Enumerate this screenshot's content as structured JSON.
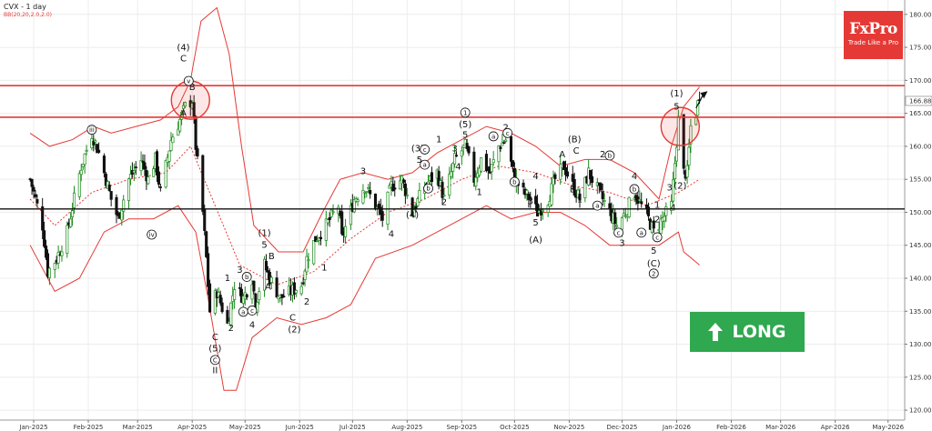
{
  "header": {
    "symbol": "CVX - 1 day",
    "indicator": "BB(20,20,2.0,2.0)"
  },
  "logo": {
    "brand": "FxPro",
    "tagline": "Trade Like a Pro"
  },
  "badge": {
    "label": "LONG",
    "icon": "arrow-up-icon"
  },
  "colors": {
    "price_up": "#1b8a1b",
    "price_down": "#111111",
    "band": "#e53935",
    "badge": "#2fa84f",
    "logo": "#e53935"
  },
  "chart_data": {
    "type": "candlestick",
    "ylim": [
      118,
      182
    ],
    "y_ticks": [
      120,
      125,
      130,
      135,
      140,
      145,
      150,
      155,
      160,
      165,
      170,
      175,
      180
    ],
    "x_ticks": [
      "Jan-2025",
      "Feb-2025",
      "Mar-2025",
      "Apr-2025",
      "May-2025",
      "Jun-2025",
      "Jul-2025",
      "Aug-2025",
      "Sep-2025",
      "Oct-2025",
      "Nov-2025",
      "Dec-2025",
      "Jan-2026",
      "Feb-2026",
      "Mar-2026",
      "Apr-2026",
      "May-2026"
    ],
    "last_price": "166.88",
    "price_path": [
      [
        "2024-12-30",
        155
      ],
      [
        "2025-01-06",
        148
      ],
      [
        "2025-01-09",
        141
      ],
      [
        "2025-01-14",
        143
      ],
      [
        "2025-01-20",
        147
      ],
      [
        "2025-01-28",
        157
      ],
      [
        "2025-02-03",
        162
      ],
      [
        "2025-02-07",
        159
      ],
      [
        "2025-02-14",
        152
      ],
      [
        "2025-02-18",
        149
      ],
      [
        "2025-02-24",
        155
      ],
      [
        "2025-03-03",
        158
      ],
      [
        "2025-03-07",
        155
      ],
      [
        "2025-03-11",
        158
      ],
      [
        "2025-03-14",
        153
      ],
      [
        "2025-03-20",
        161
      ],
      [
        "2025-03-25",
        164
      ],
      [
        "2025-03-28",
        166
      ],
      [
        "2025-04-01",
        167
      ],
      [
        "2025-04-03",
        160
      ],
      [
        "2025-04-07",
        150
      ],
      [
        "2025-04-09",
        143
      ],
      [
        "2025-04-11",
        135
      ],
      [
        "2025-04-15",
        138
      ],
      [
        "2025-04-21",
        133
      ],
      [
        "2025-04-25",
        139
      ],
      [
        "2025-04-30",
        137
      ],
      [
        "2025-05-05",
        140
      ],
      [
        "2025-05-07",
        136
      ],
      [
        "2025-05-12",
        142
      ],
      [
        "2025-05-15",
        140
      ],
      [
        "2025-05-21",
        137
      ],
      [
        "2025-05-27",
        138
      ],
      [
        "2025-06-02",
        139
      ],
      [
        "2025-06-05",
        143
      ],
      [
        "2025-06-10",
        146
      ],
      [
        "2025-06-16",
        148
      ],
      [
        "2025-06-23",
        151
      ],
      [
        "2025-06-25",
        146
      ],
      [
        "2025-07-02",
        152
      ],
      [
        "2025-07-08",
        154
      ],
      [
        "2025-07-14",
        151
      ],
      [
        "2025-07-18",
        149
      ],
      [
        "2025-07-23",
        154
      ],
      [
        "2025-07-29",
        155
      ],
      [
        "2025-08-04",
        150
      ],
      [
        "2025-08-11",
        154
      ],
      [
        "2025-08-18",
        156
      ],
      [
        "2025-08-22",
        152
      ],
      [
        "2025-08-28",
        158
      ],
      [
        "2025-09-03",
        160
      ],
      [
        "2025-09-08",
        155
      ],
      [
        "2025-09-12",
        158
      ],
      [
        "2025-09-17",
        156
      ],
      [
        "2025-09-22",
        160
      ],
      [
        "2025-09-26",
        161
      ],
      [
        "2025-10-01",
        155
      ],
      [
        "2025-10-06",
        153
      ],
      [
        "2025-10-10",
        152
      ],
      [
        "2025-10-14",
        150
      ],
      [
        "2025-10-20",
        152
      ],
      [
        "2025-10-24",
        155
      ],
      [
        "2025-10-29",
        157
      ],
      [
        "2025-11-03",
        154
      ],
      [
        "2025-11-07",
        152
      ],
      [
        "2025-11-12",
        156
      ],
      [
        "2025-11-18",
        153
      ],
      [
        "2025-11-24",
        150
      ],
      [
        "2025-11-28",
        148
      ],
      [
        "2025-12-03",
        150
      ],
      [
        "2025-12-08",
        153
      ],
      [
        "2025-12-12",
        151
      ],
      [
        "2025-12-16",
        149
      ],
      [
        "2025-12-19",
        147
      ],
      [
        "2025-12-24",
        149
      ],
      [
        "2025-12-29",
        151
      ],
      [
        "2026-01-02",
        164
      ],
      [
        "2026-01-05",
        156
      ],
      [
        "2026-01-07",
        156
      ],
      [
        "2026-01-09",
        163
      ],
      [
        "2026-01-12",
        165
      ],
      [
        "2026-01-14",
        168
      ]
    ],
    "bb_upper": [
      [
        "2024-12-30",
        162
      ],
      [
        "2025-01-10",
        160
      ],
      [
        "2025-01-23",
        161
      ],
      [
        "2025-02-04",
        163
      ],
      [
        "2025-02-14",
        162
      ],
      [
        "2025-02-28",
        163
      ],
      [
        "2025-03-14",
        164
      ],
      [
        "2025-03-24",
        166
      ],
      [
        "2025-03-31",
        170
      ],
      [
        "2025-04-06",
        179
      ],
      [
        "2025-04-15",
        181
      ],
      [
        "2025-04-22",
        174
      ],
      [
        "2025-04-29",
        160
      ],
      [
        "2025-05-06",
        148
      ],
      [
        "2025-05-20",
        144
      ],
      [
        "2025-06-03",
        144
      ],
      [
        "2025-06-14",
        150
      ],
      [
        "2025-06-24",
        155
      ],
      [
        "2025-07-07",
        156
      ],
      [
        "2025-07-21",
        155
      ],
      [
        "2025-08-04",
        156
      ],
      [
        "2025-08-18",
        159
      ],
      [
        "2025-09-01",
        161
      ],
      [
        "2025-09-15",
        163
      ],
      [
        "2025-09-29",
        162
      ],
      [
        "2025-10-13",
        160
      ],
      [
        "2025-10-27",
        157
      ],
      [
        "2025-11-10",
        158
      ],
      [
        "2025-11-24",
        158
      ],
      [
        "2025-12-08",
        156
      ],
      [
        "2025-12-22",
        152
      ],
      [
        "2025-12-29",
        160
      ],
      [
        "2026-01-05",
        166
      ],
      [
        "2026-01-14",
        169
      ]
    ],
    "bb_middle": [
      [
        "2024-12-30",
        152
      ],
      [
        "2025-01-13",
        148
      ],
      [
        "2025-02-03",
        153
      ],
      [
        "2025-02-24",
        155
      ],
      [
        "2025-03-17",
        156
      ],
      [
        "2025-03-31",
        160
      ],
      [
        "2025-04-14",
        151
      ],
      [
        "2025-04-28",
        142
      ],
      [
        "2025-05-19",
        139
      ],
      [
        "2025-06-09",
        141
      ],
      [
        "2025-06-30",
        146
      ],
      [
        "2025-07-21",
        150
      ],
      [
        "2025-08-11",
        152
      ],
      [
        "2025-09-01",
        155
      ],
      [
        "2025-09-22",
        157
      ],
      [
        "2025-10-13",
        156
      ],
      [
        "2025-11-03",
        154
      ],
      [
        "2025-11-24",
        153
      ],
      [
        "2025-12-15",
        151
      ],
      [
        "2026-01-02",
        153
      ],
      [
        "2026-01-14",
        155
      ]
    ],
    "bb_lower": [
      [
        "2024-12-30",
        145
      ],
      [
        "2025-01-13",
        138
      ],
      [
        "2025-01-27",
        140
      ],
      [
        "2025-02-10",
        147
      ],
      [
        "2025-02-24",
        149
      ],
      [
        "2025-03-10",
        149
      ],
      [
        "2025-03-24",
        151
      ],
      [
        "2025-04-03",
        147
      ],
      [
        "2025-04-10",
        137
      ],
      [
        "2025-04-19",
        123
      ],
      [
        "2025-04-26",
        123
      ],
      [
        "2025-05-05",
        131
      ],
      [
        "2025-05-19",
        134
      ],
      [
        "2025-06-02",
        133
      ],
      [
        "2025-06-16",
        134
      ],
      [
        "2025-06-30",
        136
      ],
      [
        "2025-07-14",
        143
      ],
      [
        "2025-08-04",
        145
      ],
      [
        "2025-08-18",
        147
      ],
      [
        "2025-09-01",
        149
      ],
      [
        "2025-09-15",
        151
      ],
      [
        "2025-09-29",
        149
      ],
      [
        "2025-10-13",
        150
      ],
      [
        "2025-10-27",
        150
      ],
      [
        "2025-11-10",
        148
      ],
      [
        "2025-11-24",
        145
      ],
      [
        "2025-12-08",
        145
      ],
      [
        "2025-12-22",
        145
      ],
      [
        "2026-01-02",
        147
      ],
      [
        "2026-01-05",
        144
      ],
      [
        "2026-01-14",
        142
      ]
    ],
    "resistance_levels": [
      169.2,
      164.4
    ],
    "support_level": 150.5,
    "circle_highlights": [
      {
        "date": "2025-03-31",
        "price": 167
      },
      {
        "date": "2026-01-03",
        "price": 163
      }
    ],
    "wave_labels": [
      {
        "t": "(4)",
        "d": "2025-03-27",
        "p": 174.5
      },
      {
        "t": "C",
        "d": "2025-03-27",
        "p": 172.9
      },
      {
        "t": "B",
        "d": "2025-04-01",
        "p": 168.5
      },
      {
        "t": "A",
        "d": "2025-03-27",
        "p": 164.6
      },
      {
        "t": "iii",
        "d": "2025-02-03",
        "p": 162
      },
      {
        "t": "iv",
        "d": "2025-03-09",
        "p": 146.2
      },
      {
        "t": "C",
        "d": "2025-04-14",
        "p": 130.6
      },
      {
        "t": "(5)",
        "d": "2025-04-14",
        "p": 128.9
      },
      {
        "t": "C",
        "d": "2025-04-14",
        "p": 127.2
      },
      {
        "t": "II",
        "d": "2025-04-14",
        "p": 125.6
      },
      {
        "t": "1",
        "d": "2025-04-21",
        "p": 139.6
      },
      {
        "t": "2",
        "d": "2025-04-23",
        "p": 132.0
      },
      {
        "t": "3",
        "d": "2025-04-28",
        "p": 140.8
      },
      {
        "t": "4",
        "d": "2025-05-05",
        "p": 132.5
      },
      {
        "t": "a",
        "d": "2025-04-30",
        "p": 134.5
      },
      {
        "t": "b",
        "d": "2025-05-02",
        "p": 139.8
      },
      {
        "t": "c",
        "d": "2025-05-05",
        "p": 134.7
      },
      {
        "t": "(1)",
        "d": "2025-05-12",
        "p": 146.4
      },
      {
        "t": "5",
        "d": "2025-05-12",
        "p": 144.6
      },
      {
        "t": "B",
        "d": "2025-05-16",
        "p": 142.9
      },
      {
        "t": "A",
        "d": "2025-05-14",
        "p": 138.3
      },
      {
        "t": "C",
        "d": "2025-05-28",
        "p": 133.6
      },
      {
        "t": "(2)",
        "d": "2025-05-29",
        "p": 131.8
      },
      {
        "t": "1",
        "d": "2025-06-15",
        "p": 141.2
      },
      {
        "t": "2",
        "d": "2025-06-05",
        "p": 136.0
      },
      {
        "t": "3",
        "d": "2025-07-07",
        "p": 155.8
      },
      {
        "t": "4",
        "d": "2025-07-23",
        "p": 146.3
      },
      {
        "t": "(3)",
        "d": "2025-08-07",
        "p": 159.2
      },
      {
        "t": "5",
        "d": "2025-08-08",
        "p": 157.5
      },
      {
        "t": "(4)",
        "d": "2025-08-04",
        "p": 149.2
      },
      {
        "t": "1",
        "d": "2025-08-19",
        "p": 160.6
      },
      {
        "t": "2",
        "d": "2025-08-22",
        "p": 151.1
      },
      {
        "t": "3",
        "d": "2025-08-28",
        "p": 159.2
      },
      {
        "t": "4",
        "d": "2025-08-30",
        "p": 156.5
      },
      {
        "t": "1",
        "d": "2025-09-03",
        "p": 164.7
      },
      {
        "t": "(5)",
        "d": "2025-09-03",
        "p": 162.9
      },
      {
        "t": "5",
        "d": "2025-09-03",
        "p": 161.3
      },
      {
        "t": "1",
        "d": "2025-09-11",
        "p": 152.6
      },
      {
        "t": "2",
        "d": "2025-09-26",
        "p": 162.4
      },
      {
        "t": "3",
        "d": "2025-10-10",
        "p": 151.2
      },
      {
        "t": "4",
        "d": "2025-10-13",
        "p": 155.0
      },
      {
        "t": "5",
        "d": "2025-10-13",
        "p": 148.0
      },
      {
        "t": "(A)",
        "d": "2025-10-13",
        "p": 145.4
      },
      {
        "t": "A",
        "d": "2025-10-28",
        "p": 158.3
      },
      {
        "t": "(B)",
        "d": "2025-11-04",
        "p": 160.6
      },
      {
        "t": "C",
        "d": "2025-11-05",
        "p": 158.9
      },
      {
        "t": "B",
        "d": "2025-11-03",
        "p": 153.0
      },
      {
        "t": "1",
        "d": "2025-11-07",
        "p": 151.5
      },
      {
        "t": "2",
        "d": "2025-11-20",
        "p": 158.3
      },
      {
        "t": "3",
        "d": "2025-12-01",
        "p": 144.9
      },
      {
        "t": "4",
        "d": "2025-12-08",
        "p": 155.0
      },
      {
        "t": "1",
        "d": "2025-12-21",
        "p": 150.7
      },
      {
        "t": "2",
        "d": "2025-12-21",
        "p": 148.5
      },
      {
        "t": "5",
        "d": "2025-12-19",
        "p": 143.7
      },
      {
        "t": "(C)",
        "d": "2025-12-19",
        "p": 141.8
      },
      {
        "t": "(1)",
        "d": "2026-01-01",
        "p": 167.6
      },
      {
        "t": "5",
        "d": "2026-01-01",
        "p": 165.6
      },
      {
        "t": "3",
        "d": "2025-12-28",
        "p": 153.3
      },
      {
        "t": "4",
        "d": "2025-12-30",
        "p": 150.3
      },
      {
        "t": "(2)",
        "d": "2026-01-03",
        "p": 153.6
      }
    ],
    "circled_labels": [
      {
        "t": "v",
        "d": "2025-03-30",
        "p": 169.5
      },
      {
        "t": "iii",
        "d": "2025-02-03",
        "p": 162.1
      },
      {
        "t": "iv",
        "d": "2025-03-09",
        "p": 146.2
      },
      {
        "t": "C",
        "d": "2025-04-14",
        "p": 127.2
      },
      {
        "t": "a",
        "d": "2025-04-30",
        "p": 134.5
      },
      {
        "t": "b",
        "d": "2025-05-02",
        "p": 139.8
      },
      {
        "t": "c",
        "d": "2025-05-05",
        "p": 134.7
      },
      {
        "t": "c",
        "d": "2025-08-11",
        "p": 159.1
      },
      {
        "t": "a",
        "d": "2025-08-11",
        "p": 156.8
      },
      {
        "t": "b",
        "d": "2025-08-13",
        "p": 153.2
      },
      {
        "t": "1",
        "d": "2025-09-03",
        "p": 164.7
      },
      {
        "t": "a",
        "d": "2025-09-19",
        "p": 161.1
      },
      {
        "t": "c",
        "d": "2025-09-27",
        "p": 161.6
      },
      {
        "t": "b",
        "d": "2025-10-01",
        "p": 154.2
      },
      {
        "t": "b",
        "d": "2025-11-24",
        "p": 158.2
      },
      {
        "t": "a",
        "d": "2025-11-17",
        "p": 150.6
      },
      {
        "t": "c",
        "d": "2025-11-29",
        "p": 146.5
      },
      {
        "t": "a",
        "d": "2025-12-12",
        "p": 146.5
      },
      {
        "t": "b",
        "d": "2025-12-08",
        "p": 153.1
      },
      {
        "t": "c",
        "d": "2025-12-21",
        "p": 145.8
      },
      {
        "t": "2",
        "d": "2025-12-19",
        "p": 140.3
      }
    ]
  }
}
